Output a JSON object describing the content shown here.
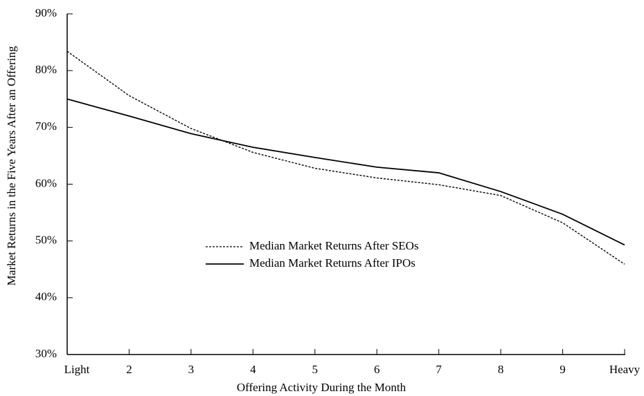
{
  "chart_data": {
    "type": "line",
    "x_label": "Offering Activity During the Month",
    "y_label": "Market Returns in the Five Years After an Offering",
    "categories": [
      "Light",
      "2",
      "3",
      "4",
      "5",
      "6",
      "7",
      "8",
      "9",
      "Heavy"
    ],
    "series": [
      {
        "name": "Median Market Returns After SEOs",
        "color": "#000000",
        "style": "dashed",
        "values": [
          83.4,
          75.6,
          69.8,
          65.6,
          62.8,
          61.1,
          59.9,
          58.0,
          53.2,
          45.9
        ]
      },
      {
        "name": "Median Market Returns After IPOs",
        "color": "#000000",
        "style": "solid",
        "values": [
          75.0,
          72.0,
          68.9,
          66.5,
          64.7,
          63.0,
          62.0,
          58.7,
          54.7,
          49.3
        ]
      }
    ],
    "ylim": [
      30,
      90
    ],
    "yticks": [
      {
        "value": 30,
        "label": "30%"
      },
      {
        "value": 40,
        "label": "40%"
      },
      {
        "value": 50,
        "label": "50%"
      },
      {
        "value": 60,
        "label": "60%"
      },
      {
        "value": 70,
        "label": "70%"
      },
      {
        "value": 80,
        "label": "80%"
      },
      {
        "value": 90,
        "label": "90%"
      }
    ],
    "grid": false
  }
}
